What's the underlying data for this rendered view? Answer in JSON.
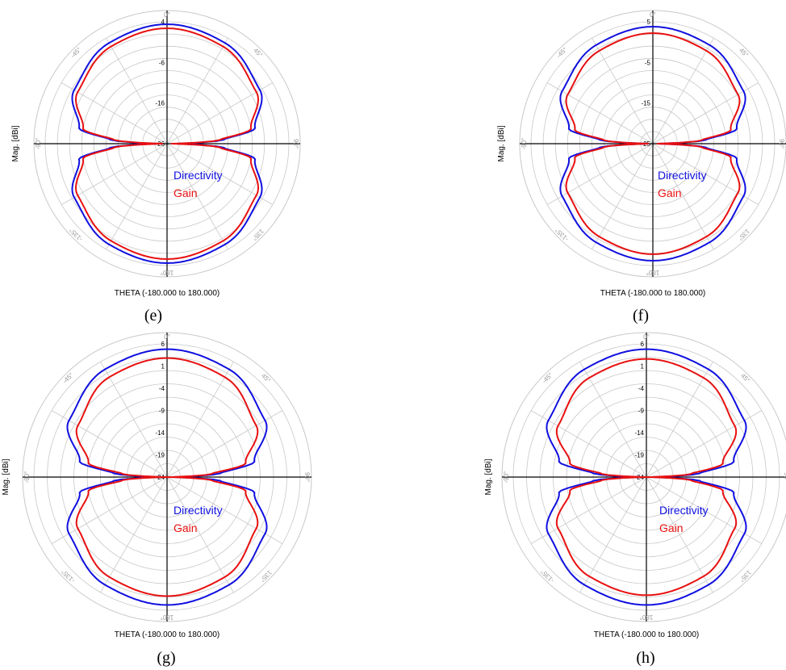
{
  "colors": {
    "directivity": "#1010e0",
    "gain": "#e81010",
    "grid": "#c8c8c8",
    "axis": "#000000"
  },
  "chart_data": [
    {
      "type": "polar-line",
      "panel": "(e)",
      "xlabel": "THETA (-180.000 to 180.000)",
      "ylabel": "Mag. [dBi]",
      "angle_ticks": [
        "0°",
        "45°",
        "90°",
        "135°",
        "180°",
        "-135°",
        "-90°",
        "-45°"
      ],
      "radial_ticks": [
        4,
        -6,
        -16,
        -26
      ],
      "rlim": [
        -26,
        4
      ],
      "legend": [
        "Directivity",
        "Gain"
      ],
      "series": [
        {
          "name": "Directivity",
          "theta": [
            0,
            30,
            60,
            80,
            86,
            90,
            94,
            100,
            120,
            150,
            180
          ],
          "values": [
            3.4,
            2.6,
            0.4,
            -4,
            -12,
            -24,
            -12,
            -4,
            0.4,
            2.6,
            3.4
          ]
        },
        {
          "name": "Gain",
          "theta": [
            0,
            30,
            60,
            80,
            86,
            90,
            94,
            100,
            120,
            150,
            180
          ],
          "values": [
            2.4,
            1.6,
            -0.6,
            -5,
            -13,
            -25,
            -13,
            -5,
            -0.6,
            1.6,
            2.4
          ]
        }
      ]
    },
    {
      "type": "polar-line",
      "panel": "(f)",
      "xlabel": "THETA (-180.000 to 180.000)",
      "ylabel": "Mag. [dBi]",
      "angle_ticks": [
        "0°",
        "45°",
        "90°",
        "135°",
        "180°",
        "-135°",
        "-90°",
        "-45°"
      ],
      "radial_ticks": [
        5,
        -5,
        -15,
        -25
      ],
      "rlim": [
        -25,
        5
      ],
      "legend": [
        "Directivity",
        "Gain"
      ],
      "series": [
        {
          "name": "Directivity",
          "theta": [
            0,
            30,
            60,
            80,
            86,
            90,
            94,
            100,
            120,
            150,
            180
          ],
          "values": [
            3.8,
            3.0,
            0.8,
            -4,
            -12,
            -24,
            -12,
            -4,
            0.8,
            3.0,
            3.8
          ]
        },
        {
          "name": "Gain",
          "theta": [
            0,
            30,
            60,
            80,
            86,
            90,
            94,
            100,
            120,
            150,
            180
          ],
          "values": [
            2.2,
            1.4,
            -0.8,
            -5.5,
            -13,
            -24,
            -13,
            -5.5,
            -0.8,
            1.4,
            2.2
          ]
        }
      ]
    },
    {
      "type": "polar-line",
      "panel": "(g)",
      "xlabel": "THETA (-180.000 to 180.000)",
      "ylabel": "Mag. [dBi]",
      "angle_ticks": [
        "0°",
        "45°",
        "90°",
        "135°",
        "180°",
        "-135°",
        "-90°",
        "-45°"
      ],
      "radial_ticks": [
        6,
        1,
        -4,
        -9,
        -14,
        -19,
        -24
      ],
      "rlim": [
        -24,
        6
      ],
      "legend": [
        "Directivity",
        "Gain"
      ],
      "series": [
        {
          "name": "Directivity",
          "theta": [
            0,
            30,
            60,
            80,
            86,
            90,
            94,
            100,
            120,
            150,
            180
          ],
          "values": [
            4.8,
            4.0,
            1.5,
            -4,
            -12,
            -23,
            -12,
            -4,
            1.5,
            4.0,
            4.8
          ]
        },
        {
          "name": "Gain",
          "theta": [
            0,
            30,
            60,
            80,
            86,
            90,
            94,
            100,
            120,
            150,
            180
          ],
          "values": [
            2.8,
            2.0,
            -0.8,
            -6,
            -14,
            -24,
            -14,
            -6,
            -0.8,
            2.0,
            2.8
          ]
        }
      ]
    },
    {
      "type": "polar-line",
      "panel": "(h)",
      "xlabel": "THETA (-180.000 to 180.000)",
      "ylabel": "Mag. [dBi]",
      "angle_ticks": [
        "0°",
        "45°",
        "90°",
        "135°",
        "180°",
        "-135°",
        "-90°",
        "-45°"
      ],
      "radial_ticks": [
        6,
        1,
        -4,
        -9,
        -14,
        -19,
        -24
      ],
      "rlim": [
        -24,
        6
      ],
      "legend": [
        "Directivity",
        "Gain"
      ],
      "series": [
        {
          "name": "Directivity",
          "theta": [
            0,
            30,
            60,
            80,
            86,
            90,
            94,
            100,
            120,
            150,
            180
          ],
          "values": [
            4.8,
            4.0,
            1.5,
            -4,
            -12,
            -23,
            -12,
            -4,
            1.5,
            4.0,
            4.8
          ]
        },
        {
          "name": "Gain",
          "theta": [
            0,
            30,
            60,
            80,
            86,
            90,
            94,
            100,
            120,
            150,
            180
          ],
          "values": [
            2.6,
            1.8,
            -1.0,
            -6.5,
            -14,
            -24,
            -14,
            -6.5,
            -1.0,
            1.8,
            2.6
          ]
        }
      ]
    }
  ]
}
